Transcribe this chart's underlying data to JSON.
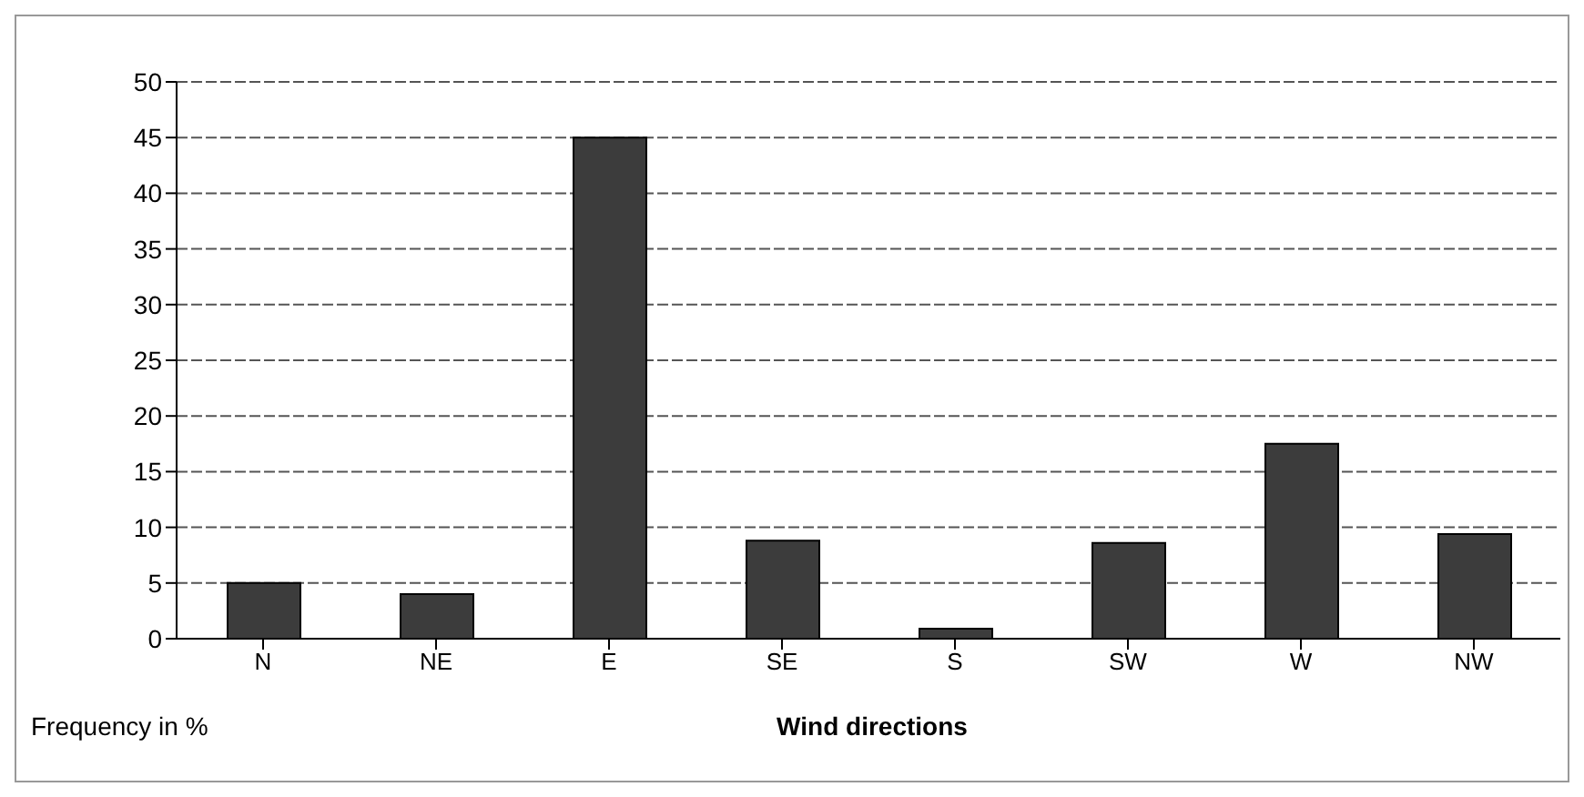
{
  "chart_data": {
    "type": "bar",
    "xlabel": "Wind directions",
    "ylabel": "Frequency in %",
    "categories": [
      "N",
      "NE",
      "E",
      "SE",
      "S",
      "SW",
      "W",
      "NW"
    ],
    "values": [
      5,
      4,
      45,
      8.8,
      0.9,
      8.6,
      17.5,
      9.4
    ],
    "color": "#3c3c3c",
    "ylim": [
      0,
      50
    ],
    "yticks": [
      0,
      5,
      10,
      15,
      20,
      25,
      30,
      35,
      40,
      45,
      50
    ],
    "grid": "y",
    "legend": false
  }
}
